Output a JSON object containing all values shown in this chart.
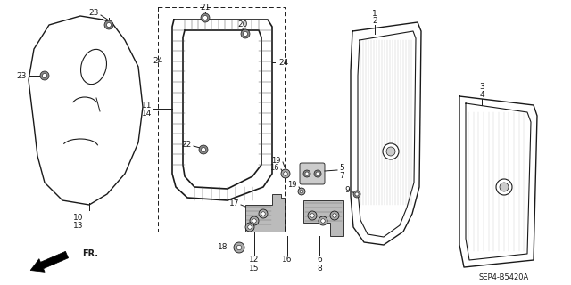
{
  "bg_color": "#ffffff",
  "line_color": "#1a1a1a",
  "text_color": "#1a1a1a",
  "figsize": [
    6.4,
    3.2
  ],
  "dpi": 100,
  "diagram_ref": "SEP4-B5420A"
}
